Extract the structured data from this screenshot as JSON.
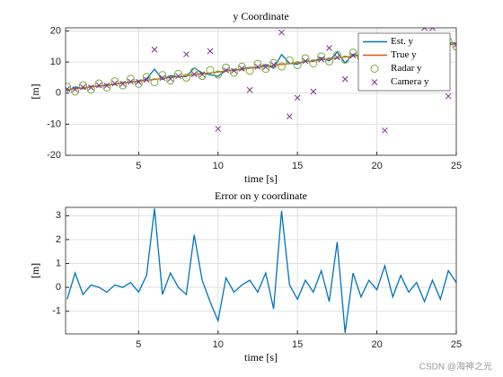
{
  "chart_data": [
    {
      "type": "line",
      "title": "y Coordinate",
      "xlabel": "time [s]",
      "ylabel": "[m]",
      "x": [
        0.5,
        1,
        1.5,
        2,
        2.5,
        3,
        3.5,
        4,
        4.5,
        5,
        5.5,
        6,
        6.5,
        7,
        7.5,
        8,
        8.5,
        9,
        9.5,
        10,
        10.5,
        11,
        11.5,
        12,
        12.5,
        13,
        13.5,
        14,
        14.5,
        15,
        15.5,
        16,
        16.5,
        17,
        17.5,
        18,
        18.5,
        19,
        19.5,
        20,
        20.5,
        21,
        21.5,
        22,
        22.5,
        23,
        23.5,
        24,
        24.5,
        25
      ],
      "series": [
        {
          "name": "Est. y",
          "color": "#0072bd",
          "style": "line",
          "values": [
            0.6,
            2.0,
            1.4,
            2.1,
            2.3,
            2.4,
            3.0,
            3.2,
            3.7,
            3.6,
            4.6,
            7.7,
            4.4,
            5.6,
            5.3,
            5.3,
            8.1,
            6.5,
            5.9,
            5.4,
            7.5,
            7.2,
            7.8,
            8.3,
            8.1,
            9.2,
            8.0,
            12.4,
            9.6,
            9.3,
            10.4,
            10.2,
            11.4,
            10.4,
            13.2,
            9.7,
            12.5,
            11.8,
            12.8,
            12.7,
            14.0,
            13.0,
            14.2,
            13.8,
            14.5,
            14.0,
            15.2,
            14.7,
            16.2,
            16.0
          ]
        },
        {
          "name": "True y",
          "color": "#d95319",
          "style": "line",
          "values": [
            1.1,
            1.4,
            1.7,
            2.0,
            2.3,
            2.6,
            2.9,
            3.2,
            3.5,
            3.8,
            4.1,
            4.4,
            4.7,
            5.0,
            5.3,
            5.6,
            5.9,
            6.2,
            6.5,
            6.8,
            7.1,
            7.4,
            7.7,
            8.0,
            8.3,
            8.6,
            8.9,
            9.2,
            9.5,
            9.8,
            10.1,
            10.4,
            10.7,
            11.0,
            11.3,
            11.6,
            11.9,
            12.2,
            12.5,
            12.8,
            13.1,
            13.4,
            13.7,
            14.0,
            14.3,
            14.6,
            14.9,
            15.2,
            15.5,
            15.8
          ]
        },
        {
          "name": "Radar y",
          "color": "#77ac30",
          "style": "marker",
          "marker": "o",
          "values": [
            2.0,
            0.5,
            2.5,
            1.2,
            3.1,
            1.8,
            3.8,
            2.5,
            4.6,
            3.0,
            5.2,
            3.5,
            5.8,
            4.1,
            6.2,
            5.0,
            6.9,
            5.5,
            7.4,
            6.0,
            8.2,
            6.6,
            8.5,
            7.2,
            9.4,
            7.8,
            9.7,
            8.6,
            10.5,
            9.0,
            11.2,
            9.6,
            11.8,
            10.2,
            12.3,
            10.8,
            13.0,
            11.5,
            13.6,
            12.0,
            14.1,
            12.6,
            14.7,
            13.2,
            15.3,
            13.8,
            15.6,
            14.5,
            16.6,
            15.0
          ]
        },
        {
          "name": "Camera y",
          "color": "#7e2f8e",
          "style": "marker",
          "marker": "x",
          "values": [
            1.3,
            1.2,
            1.9,
            1.8,
            2.5,
            2.4,
            3.1,
            3.0,
            3.7,
            3.6,
            4.3,
            14,
            4.9,
            4.6,
            5.5,
            12.5,
            6.1,
            6.0,
            13.5,
            -11.5,
            7.3,
            7.2,
            7.9,
            1.0,
            8.5,
            8.4,
            9.1,
            19.5,
            -7.5,
            -1.5,
            10.3,
            0.5,
            10.9,
            14.5,
            11.5,
            4.5,
            12.1,
            12.0,
            12.7,
            12.6,
            -12,
            13.2,
            13.9,
            13.8,
            14.5,
            21,
            21,
            15.0,
            -1,
            15.6
          ]
        }
      ],
      "xlim": [
        0.4,
        25
      ],
      "xticks": [
        5,
        10,
        15,
        20,
        25
      ],
      "ylim": [
        -20,
        21
      ],
      "yticks": [
        -20,
        -10,
        0,
        10,
        20
      ],
      "grid": true,
      "legend": "top-right"
    },
    {
      "type": "line",
      "title": "Error on y coordinate",
      "xlabel": "time [s]",
      "ylabel": "[m]",
      "x": [
        0.5,
        1,
        1.5,
        2,
        2.5,
        3,
        3.5,
        4,
        4.5,
        5,
        5.5,
        6,
        6.5,
        7,
        7.5,
        8,
        8.5,
        9,
        9.5,
        10,
        10.5,
        11,
        11.5,
        12,
        12.5,
        13,
        13.5,
        14,
        14.5,
        15,
        15.5,
        16,
        16.5,
        17,
        17.5,
        18,
        18.5,
        19,
        19.5,
        20,
        20.5,
        21,
        21.5,
        22,
        22.5,
        23,
        23.5,
        24,
        24.5,
        25
      ],
      "series": [
        {
          "color": "#0072bd",
          "style": "line",
          "values": [
            -0.5,
            0.6,
            -0.3,
            0.1,
            0.0,
            -0.2,
            0.1,
            0.0,
            0.2,
            -0.2,
            0.5,
            3.3,
            -0.3,
            0.6,
            0.0,
            -0.3,
            2.2,
            0.3,
            -0.6,
            -1.4,
            0.4,
            -0.2,
            0.1,
            0.3,
            -0.2,
            0.6,
            -0.9,
            3.2,
            0.1,
            -0.5,
            0.3,
            -0.2,
            0.7,
            -0.6,
            1.9,
            -1.9,
            0.6,
            -0.4,
            0.3,
            -0.1,
            0.9,
            -0.4,
            0.5,
            -0.2,
            0.2,
            -0.6,
            0.3,
            -0.5,
            0.7,
            0.2
          ]
        }
      ],
      "xlim": [
        0.4,
        25
      ],
      "xticks": [
        5,
        10,
        15,
        20,
        25
      ],
      "ylim": [
        -1.95,
        3.35
      ],
      "yticks": [
        -1,
        0,
        1,
        2,
        3
      ],
      "grid": true
    }
  ],
  "watermark": "CSDN @海神之光"
}
